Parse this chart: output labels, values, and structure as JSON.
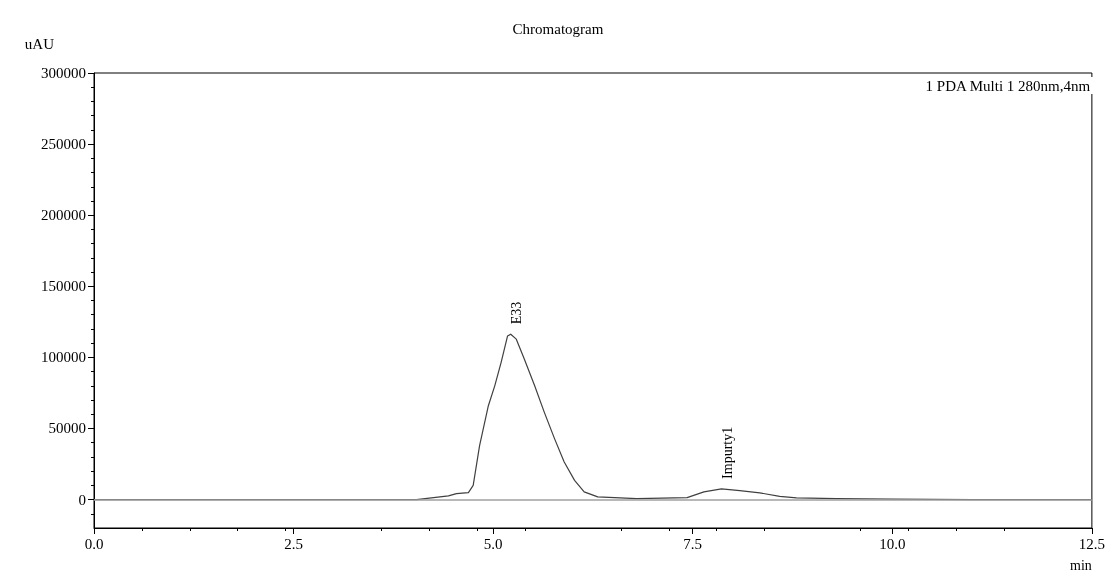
{
  "chart_data": {
    "type": "line",
    "title": "Chromatogram",
    "xlabel": "min",
    "ylabel": "uAU",
    "x": [
      0,
      1.0,
      2.0,
      3.0,
      4.04,
      4.44,
      4.54,
      4.69,
      4.75,
      4.83,
      4.94,
      5.02,
      5.1,
      5.18,
      5.22,
      5.29,
      5.39,
      5.52,
      5.64,
      5.77,
      5.89,
      6.02,
      6.14,
      6.31,
      6.8,
      7.43,
      7.64,
      7.86,
      8.09,
      8.34,
      8.59,
      8.8,
      9.3,
      10.0,
      11.0,
      12.5
    ],
    "series": [
      {
        "color": "#404040",
        "values": [
          0,
          0,
          0,
          0,
          0,
          2600,
          4200,
          4900,
          10000,
          38000,
          66000,
          80000,
          96500,
          115000,
          116300,
          112800,
          98800,
          80000,
          61500,
          42700,
          26400,
          13500,
          5400,
          1900,
          700,
          1400,
          5400,
          7500,
          6300,
          4700,
          2300,
          1200,
          700,
          300,
          0,
          0
        ]
      }
    ],
    "xlim": [
      0,
      12.5
    ],
    "xticks": [
      {
        "value": 0,
        "label": "0.0"
      },
      2.5,
      {
        "value": 5,
        "label": "5.0"
      },
      7.5,
      {
        "value": 10,
        "label": "10.0"
      },
      12.5
    ],
    "ylim": [
      -20000,
      300000
    ],
    "yticks": [
      0,
      50000,
      100000,
      150000,
      200000,
      250000,
      300000
    ],
    "ref_lines": [
      {
        "axis": "y",
        "value": 0,
        "color": "#a0a0a0"
      }
    ],
    "annotations": [
      "1 PDA Multi 1 280nm,4nm",
      {
        "text": "E33",
        "x": 5.22,
        "y": 116300
      },
      {
        "text": "Impurty1",
        "x": 7.86,
        "y": 7500
      }
    ],
    "grid": false,
    "marker": "none",
    "line_style": "solid"
  }
}
